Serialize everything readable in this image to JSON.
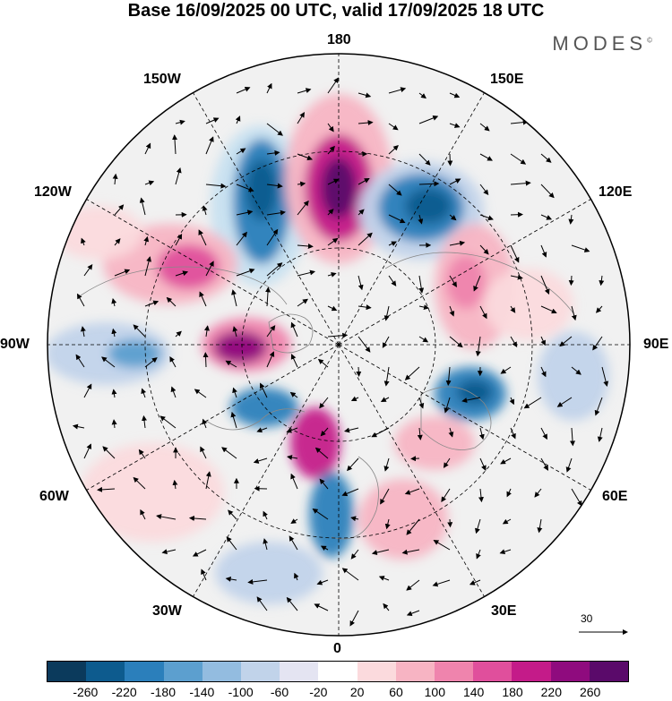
{
  "title": "Base 16/09/2025 00 UTC, valid 17/09/2025 18 UTC",
  "brand": "MODES",
  "brand_mark": "©",
  "longitude_labels": {
    "n180": "180",
    "w150": "150W",
    "e150": "150E",
    "w120": "120W",
    "e120": "120E",
    "w90": "90W",
    "e90": "90E",
    "w60": "60W",
    "e60": "60E",
    "w30": "30W",
    "e30": "30E",
    "s0": "0"
  },
  "reference_vector": "30",
  "colorbar": {
    "colors": [
      "#0b3a5c",
      "#0d5b8e",
      "#2b7fbb",
      "#5c9fcf",
      "#93bce0",
      "#c1d3ea",
      "#e4e4f2",
      "#ffffff",
      "#fbdadd",
      "#f7b4c3",
      "#ef84ad",
      "#e04f9c",
      "#c41b89",
      "#8f0b7e",
      "#5a0a6a"
    ],
    "tick_labels": [
      "-260",
      "-220",
      "-180",
      "-140",
      "-100",
      "-60",
      "-20",
      "20",
      "60",
      "100",
      "140",
      "180",
      "220",
      "260"
    ]
  }
}
